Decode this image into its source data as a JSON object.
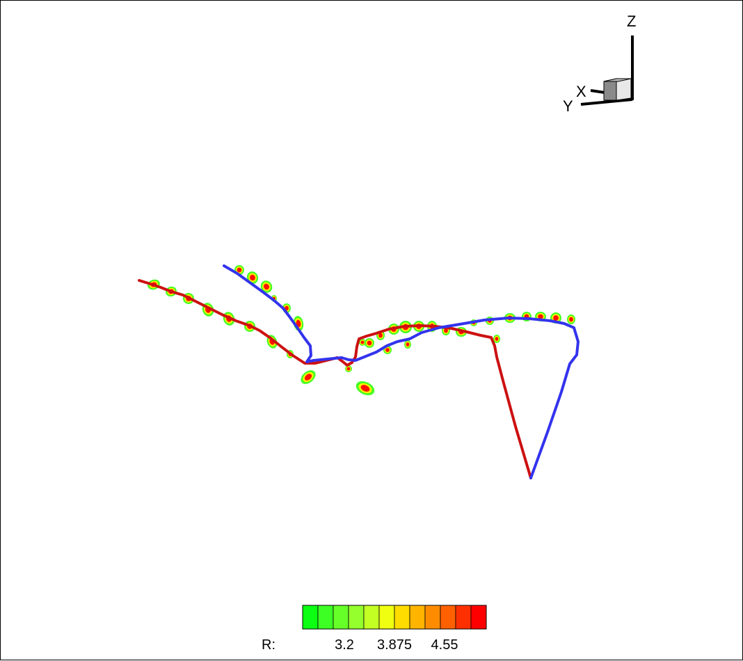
{
  "axes": {
    "z_label": "Z",
    "x_label": "X",
    "y_label": "Y"
  },
  "legend": {
    "prefix": "R:",
    "ticks": [
      "3.2",
      "3.875",
      "4.55"
    ],
    "colors": [
      "#0cff12",
      "#3dff24",
      "#66ff28",
      "#94ff2c",
      "#c4ff24",
      "#f0ff10",
      "#ffdc00",
      "#ffb400",
      "#ff8c00",
      "#ff6000",
      "#ff3000",
      "#ff0000"
    ]
  },
  "lines": {
    "red_color": "#cc1111",
    "blue_color": "#3333ee"
  },
  "contour_colors": {
    "outer": "#44ff22",
    "middle": "#ffee00",
    "inner": "#ff1100"
  }
}
